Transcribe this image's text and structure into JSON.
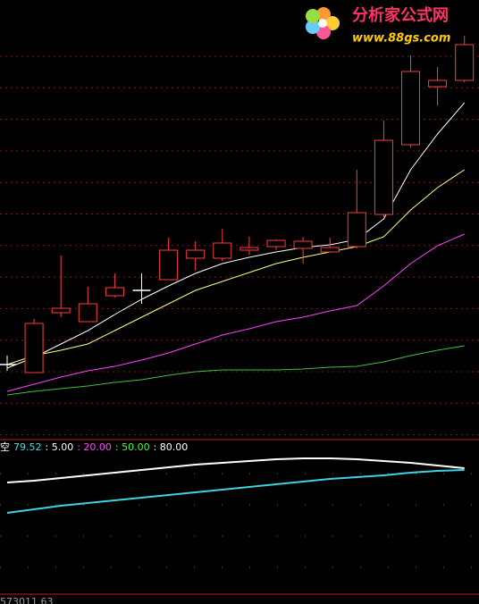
{
  "watermark": {
    "title": "分析家公式网",
    "url": "www.88gs.com"
  },
  "footer": "573011.63",
  "chart_data": [
    {
      "type": "candlestick",
      "ylim": [
        0,
        490
      ],
      "up_color": "#ff3c3c",
      "doji_color": "#ffffff",
      "open": [
        82,
        73,
        140,
        130,
        159,
        165,
        177,
        201,
        201,
        210,
        214,
        212,
        208,
        214,
        250,
        328,
        393,
        400
      ],
      "close": [
        82,
        128,
        145,
        150,
        168,
        165,
        210,
        210,
        218,
        213,
        221,
        220,
        213,
        252,
        333,
        410,
        400,
        440
      ],
      "high": [
        92,
        133,
        204,
        169,
        184,
        184,
        224,
        220,
        234,
        225,
        222,
        225,
        224,
        300,
        355,
        428,
        415,
        450
      ],
      "low": [
        75,
        73,
        135,
        130,
        157,
        150,
        177,
        187,
        198,
        205,
        210,
        195,
        208,
        212,
        247,
        325,
        372,
        398
      ],
      "lines": [
        {
          "color": "#ffffff",
          "values": [
            78,
            90,
            105,
            120,
            138,
            155,
            170,
            184,
            195,
            202,
            208,
            213,
            216,
            222,
            245,
            300,
            340,
            375
          ]
        },
        {
          "color": "#ffff80",
          "values": [
            82,
            92,
            98,
            105,
            120,
            135,
            150,
            165,
            175,
            185,
            195,
            202,
            208,
            214,
            225,
            255,
            280,
            300
          ]
        },
        {
          "color": "#ff40ff",
          "values": [
            52,
            60,
            68,
            75,
            80,
            87,
            95,
            105,
            115,
            122,
            130,
            135,
            142,
            148,
            170,
            195,
            215,
            228
          ]
        },
        {
          "color": "#40c040",
          "values": [
            48,
            52,
            55,
            58,
            62,
            65,
            70,
            74,
            76,
            76,
            76,
            77,
            79,
            80,
            85,
            92,
            98,
            103
          ]
        }
      ]
    },
    {
      "type": "line",
      "ylim": [
        0,
        173
      ],
      "legend": [
        {
          "text": "空",
          "color": "#ffffff"
        },
        {
          "text": "79.52",
          "color": "#40e0e0"
        },
        {
          "text": ": 5.00",
          "color": "#ffffff"
        },
        {
          "text": ": 20.00",
          "color": "#ff40ff"
        },
        {
          "text": ": 50.00",
          "color": "#40ff40"
        },
        {
          "text": ": 80.00",
          "color": "#ffffff"
        }
      ],
      "series": [
        {
          "color": "#ffffff",
          "values": [
            125,
            127,
            130,
            133,
            136,
            139,
            142,
            145,
            147,
            149,
            151,
            152,
            152,
            151,
            149,
            147,
            144,
            141
          ]
        },
        {
          "color": "#40d0e0",
          "values": [
            91,
            95,
            99,
            102,
            105,
            108,
            111,
            114,
            117,
            120,
            123,
            126,
            129,
            131,
            133,
            136,
            138,
            139
          ]
        }
      ]
    }
  ]
}
